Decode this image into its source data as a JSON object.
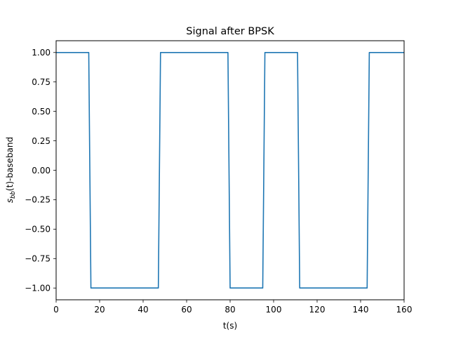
{
  "chart_data": {
    "type": "line",
    "title": "Signal after BPSK",
    "xlabel": "t(s)",
    "ylabel_main": "s",
    "ylabel_sub": "bb",
    "ylabel_rest": "(t)-baseband",
    "xlim": [
      0,
      160
    ],
    "ylim": [
      -1.1,
      1.1
    ],
    "xticks": [
      0,
      20,
      40,
      60,
      80,
      100,
      120,
      140,
      160
    ],
    "xtick_labels": [
      "0",
      "20",
      "40",
      "60",
      "80",
      "100",
      "120",
      "140",
      "160"
    ],
    "yticks": [
      1.0,
      0.75,
      0.5,
      0.25,
      0.0,
      -0.25,
      -0.5,
      -0.75,
      -1.0
    ],
    "ytick_labels": [
      "1.00",
      "0.75",
      "0.50",
      "0.25",
      "0.00",
      "−0.25",
      "−0.50",
      "−0.75",
      "−1.00"
    ],
    "grid": false,
    "line_color": "#1f77b4",
    "series": [
      {
        "x": [
          0,
          15,
          16,
          47,
          48,
          79,
          80,
          95,
          96,
          111,
          112,
          143,
          144,
          160
        ],
        "y": [
          1,
          1,
          -1,
          -1,
          1,
          1,
          -1,
          -1,
          1,
          1,
          -1,
          -1,
          1,
          1
        ]
      }
    ]
  }
}
